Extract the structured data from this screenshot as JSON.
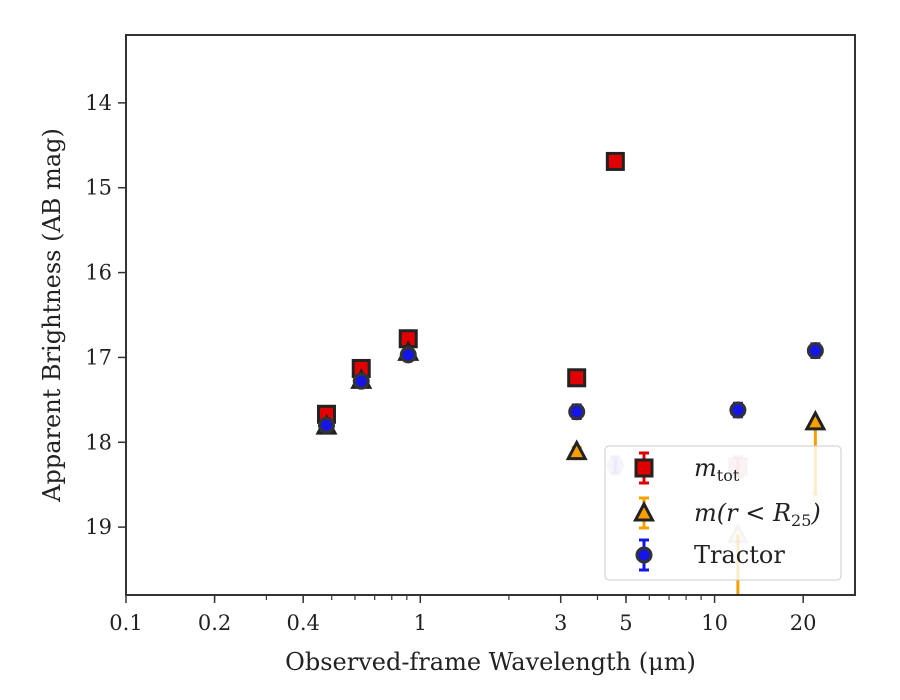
{
  "chart_data": {
    "type": "scatter",
    "xlabel": "Observed-frame Wavelength (μm)",
    "ylabel": "Apparent Brightness (AB mag)",
    "xscale": "log",
    "xlim": [
      0.1,
      30
    ],
    "ylim": [
      19.8,
      13.2
    ],
    "y_inverted": true,
    "grid": false,
    "legend_position": "lower-right",
    "x_ticks": [
      {
        "value": 0.1,
        "label": "0.1"
      },
      {
        "value": 0.2,
        "label": "0.2"
      },
      {
        "value": 0.4,
        "label": "0.4"
      },
      {
        "value": 1,
        "label": "1"
      },
      {
        "value": 3,
        "label": "3"
      },
      {
        "value": 5,
        "label": "5"
      },
      {
        "value": 10,
        "label": "10"
      },
      {
        "value": 20,
        "label": "20"
      }
    ],
    "y_ticks": [
      {
        "value": 14,
        "label": "14"
      },
      {
        "value": 15,
        "label": "15"
      },
      {
        "value": 16,
        "label": "16"
      },
      {
        "value": 17,
        "label": "17"
      },
      {
        "value": 18,
        "label": "18"
      },
      {
        "value": 19,
        "label": "19"
      }
    ],
    "series": [
      {
        "name": "m_tot",
        "marker": "square",
        "color": "#e00000",
        "edge": "#222222",
        "points": [
          {
            "x": 0.48,
            "y": 17.67,
            "err": 0.05
          },
          {
            "x": 0.63,
            "y": 17.13,
            "err": 0.05
          },
          {
            "x": 0.91,
            "y": 16.78,
            "err": 0.05
          },
          {
            "x": 3.4,
            "y": 17.24,
            "err": 0.07
          },
          {
            "x": 4.6,
            "y": 14.69,
            "err": 0.03
          },
          {
            "x": 12.0,
            "y": 18.29,
            "err": 0.12,
            "faded": true
          }
        ]
      },
      {
        "name": "m(r < R25)",
        "marker": "triangle",
        "color": "#f5a000",
        "edge": "#222222",
        "points": [
          {
            "x": 0.48,
            "y": 17.81,
            "err": 0.04
          },
          {
            "x": 0.63,
            "y": 17.27,
            "err": 0.04
          },
          {
            "x": 0.91,
            "y": 16.94,
            "err": 0.04
          },
          {
            "x": 3.4,
            "y": 18.11,
            "err": 0.05
          },
          {
            "x": 12.0,
            "y": 19.09,
            "err": 0.0,
            "faded": true,
            "lower_bar_to": 19.8
          },
          {
            "x": 22.0,
            "y": 17.76,
            "err": 0.0,
            "upper_limit_to": 18.7
          }
        ]
      },
      {
        "name": "Tractor",
        "marker": "circle",
        "color": "#1515e8",
        "edge": "#333333",
        "points": [
          {
            "x": 0.48,
            "y": 17.8,
            "err": 0.03
          },
          {
            "x": 0.63,
            "y": 17.28,
            "err": 0.03
          },
          {
            "x": 0.91,
            "y": 16.97,
            "err": 0.03
          },
          {
            "x": 3.4,
            "y": 17.64,
            "err": 0.08
          },
          {
            "x": 4.6,
            "y": 18.27,
            "err": 0.1,
            "faded": true
          },
          {
            "x": 12.0,
            "y": 17.62,
            "err": 0.08
          },
          {
            "x": 22.0,
            "y": 16.92,
            "err": 0.08
          }
        ]
      }
    ],
    "legend": [
      {
        "marker": "square",
        "label_main": "m",
        "label_sub": "tot",
        "label_tail": ""
      },
      {
        "marker": "triangle",
        "label_main": "m(r < R",
        "label_sub": "25",
        "label_tail": ")"
      },
      {
        "marker": "circle",
        "label_main": "Tractor",
        "label_sub": "",
        "label_tail": ""
      }
    ]
  }
}
